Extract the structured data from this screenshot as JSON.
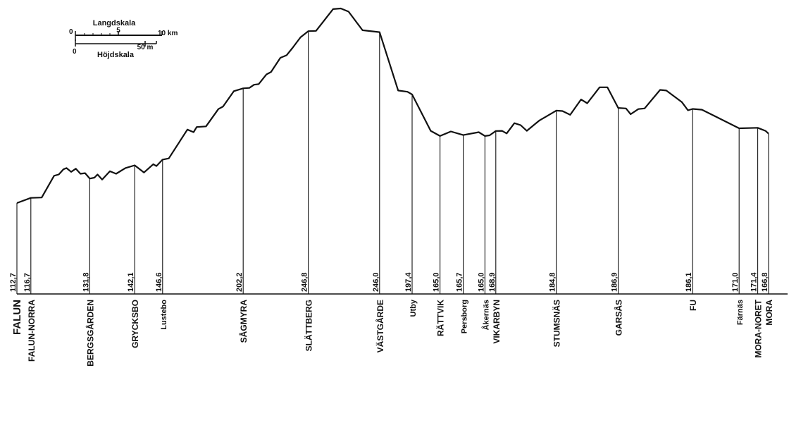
{
  "legend": {
    "length_scale_label": "Langdskala",
    "height_scale_label": "Höjdskala",
    "length_ticks": [
      "0",
      "5",
      "10 km"
    ],
    "height_ticks": [
      "0",
      "50 m"
    ]
  },
  "chart_data": {
    "type": "line",
    "title": "",
    "xlabel": "",
    "ylabel": "",
    "x_unit": "km",
    "y_unit": "m",
    "stations": [
      {
        "name": "FALUN",
        "elevation_label": "112,7",
        "elevation": 112.7,
        "km": 0.0,
        "major": true
      },
      {
        "name": "FALUN-NORRA",
        "elevation_label": "116,7",
        "elevation": 116.7,
        "km": 0.9,
        "major": true
      },
      {
        "name": "BERGSGÅRDEN",
        "elevation_label": "131,8",
        "elevation": 131.8,
        "km": 4.7,
        "major": true
      },
      {
        "name": "GRYCKSBO",
        "elevation_label": "142,1",
        "elevation": 142.1,
        "km": 7.6,
        "major": true
      },
      {
        "name": "Lustebo",
        "elevation_label": "146,6",
        "elevation": 146.6,
        "km": 9.4,
        "major": false
      },
      {
        "name": "SÅGMYRA",
        "elevation_label": "202,2",
        "elevation": 202.2,
        "km": 14.6,
        "major": true
      },
      {
        "name": "SLÄTTBERG",
        "elevation_label": "246,8",
        "elevation": 246.8,
        "km": 18.8,
        "major": true
      },
      {
        "name": "VÄSTGÅRDE",
        "elevation_label": "246,0",
        "elevation": 246.0,
        "km": 23.4,
        "major": true
      },
      {
        "name": "Utby",
        "elevation_label": "197,4",
        "elevation": 197.4,
        "km": 25.5,
        "major": false
      },
      {
        "name": "RÄTTVIK",
        "elevation_label": "165,0",
        "elevation": 165.0,
        "km": 27.3,
        "major": true
      },
      {
        "name": "Persborg",
        "elevation_label": "165,7",
        "elevation": 165.7,
        "km": 28.8,
        "major": false
      },
      {
        "name": "Åkernäs",
        "elevation_label": "165,0",
        "elevation": 165.0,
        "km": 30.2,
        "major": false
      },
      {
        "name": "VIKARBYN",
        "elevation_label": "168,9",
        "elevation": 168.9,
        "km": 30.9,
        "major": true
      },
      {
        "name": "STUMSNÄS",
        "elevation_label": "184,8",
        "elevation": 184.8,
        "km": 34.8,
        "major": true
      },
      {
        "name": "GARSÅS",
        "elevation_label": "186,9",
        "elevation": 186.9,
        "km": 38.8,
        "major": true
      },
      {
        "name": "FU",
        "elevation_label": "186,1",
        "elevation": 186.1,
        "km": 43.6,
        "major": true
      },
      {
        "name": "Färnäs",
        "elevation_label": "171,0",
        "elevation": 171.0,
        "km": 46.6,
        "major": false
      },
      {
        "name": "MORA-NORET",
        "elevation_label": "171,4",
        "elevation": 171.4,
        "km": 47.8,
        "major": true
      },
      {
        "name": "MORA",
        "elevation_label": "166,8",
        "elevation": 166.8,
        "km": 48.5,
        "major": true
      }
    ],
    "profile": [
      {
        "km": 0.0,
        "elev": 112.7
      },
      {
        "km": 0.9,
        "elev": 116.7
      },
      {
        "km": 1.6,
        "elev": 117.0
      },
      {
        "km": 2.4,
        "elev": 134.0
      },
      {
        "km": 2.7,
        "elev": 135.0
      },
      {
        "km": 3.0,
        "elev": 139.0
      },
      {
        "km": 3.2,
        "elev": 140.0
      },
      {
        "km": 3.5,
        "elev": 137.0
      },
      {
        "km": 3.8,
        "elev": 139.5
      },
      {
        "km": 4.1,
        "elev": 135.5
      },
      {
        "km": 4.4,
        "elev": 136.0
      },
      {
        "km": 4.7,
        "elev": 131.8
      },
      {
        "km": 5.0,
        "elev": 132.5
      },
      {
        "km": 5.2,
        "elev": 135.0
      },
      {
        "km": 5.5,
        "elev": 131.0
      },
      {
        "km": 6.0,
        "elev": 137.5
      },
      {
        "km": 6.4,
        "elev": 135.5
      },
      {
        "km": 7.0,
        "elev": 140.0
      },
      {
        "km": 7.6,
        "elev": 142.1
      },
      {
        "km": 8.2,
        "elev": 136.5
      },
      {
        "km": 8.8,
        "elev": 143.0
      },
      {
        "km": 9.0,
        "elev": 141.5
      },
      {
        "km": 9.4,
        "elev": 146.6
      },
      {
        "km": 9.8,
        "elev": 147.5
      },
      {
        "km": 11.0,
        "elev": 170.0
      },
      {
        "km": 11.4,
        "elev": 168.0
      },
      {
        "km": 11.6,
        "elev": 172.0
      },
      {
        "km": 12.2,
        "elev": 172.5
      },
      {
        "km": 13.0,
        "elev": 186.0
      },
      {
        "km": 13.3,
        "elev": 188.0
      },
      {
        "km": 14.0,
        "elev": 200.0
      },
      {
        "km": 14.6,
        "elev": 202.2
      },
      {
        "km": 15.0,
        "elev": 202.5
      },
      {
        "km": 15.3,
        "elev": 205.0
      },
      {
        "km": 15.6,
        "elev": 205.5
      },
      {
        "km": 16.1,
        "elev": 213.0
      },
      {
        "km": 16.4,
        "elev": 215.0
      },
      {
        "km": 17.0,
        "elev": 226.0
      },
      {
        "km": 17.4,
        "elev": 228.0
      },
      {
        "km": 17.8,
        "elev": 234.0
      },
      {
        "km": 18.3,
        "elev": 242.0
      },
      {
        "km": 18.8,
        "elev": 246.8
      },
      {
        "km": 19.3,
        "elev": 247.0
      },
      {
        "km": 20.4,
        "elev": 264.0
      },
      {
        "km": 20.9,
        "elev": 264.5
      },
      {
        "km": 21.4,
        "elev": 262.0
      },
      {
        "km": 22.3,
        "elev": 247.5
      },
      {
        "km": 23.4,
        "elev": 246.0
      },
      {
        "km": 24.6,
        "elev": 200.5
      },
      {
        "km": 25.2,
        "elev": 199.5
      },
      {
        "km": 25.5,
        "elev": 197.4
      },
      {
        "km": 26.7,
        "elev": 169.0
      },
      {
        "km": 27.3,
        "elev": 165.0
      },
      {
        "km": 28.0,
        "elev": 168.5
      },
      {
        "km": 28.8,
        "elev": 165.7
      },
      {
        "km": 29.8,
        "elev": 168.0
      },
      {
        "km": 30.2,
        "elev": 165.0
      },
      {
        "km": 30.5,
        "elev": 165.5
      },
      {
        "km": 30.9,
        "elev": 168.9
      },
      {
        "km": 31.3,
        "elev": 169.0
      },
      {
        "km": 31.6,
        "elev": 167.0
      },
      {
        "km": 32.1,
        "elev": 175.0
      },
      {
        "km": 32.5,
        "elev": 173.5
      },
      {
        "km": 32.9,
        "elev": 169.0
      },
      {
        "km": 33.7,
        "elev": 177.0
      },
      {
        "km": 34.2,
        "elev": 180.5
      },
      {
        "km": 34.8,
        "elev": 184.8
      },
      {
        "km": 35.2,
        "elev": 184.5
      },
      {
        "km": 35.7,
        "elev": 181.5
      },
      {
        "km": 36.4,
        "elev": 193.5
      },
      {
        "km": 36.8,
        "elev": 190.5
      },
      {
        "km": 37.6,
        "elev": 203.0
      },
      {
        "km": 38.1,
        "elev": 203.0
      },
      {
        "km": 38.8,
        "elev": 186.9
      },
      {
        "km": 39.3,
        "elev": 186.5
      },
      {
        "km": 39.6,
        "elev": 182.0
      },
      {
        "km": 40.1,
        "elev": 186.0
      },
      {
        "km": 40.5,
        "elev": 186.5
      },
      {
        "km": 41.5,
        "elev": 201.0
      },
      {
        "km": 41.9,
        "elev": 200.5
      },
      {
        "km": 42.9,
        "elev": 191.5
      },
      {
        "km": 43.3,
        "elev": 185.0
      },
      {
        "km": 43.6,
        "elev": 186.1
      },
      {
        "km": 44.2,
        "elev": 185.5
      },
      {
        "km": 46.6,
        "elev": 171.0
      },
      {
        "km": 47.8,
        "elev": 171.4
      },
      {
        "km": 48.3,
        "elev": 169.0
      },
      {
        "km": 48.5,
        "elev": 166.8
      }
    ]
  }
}
